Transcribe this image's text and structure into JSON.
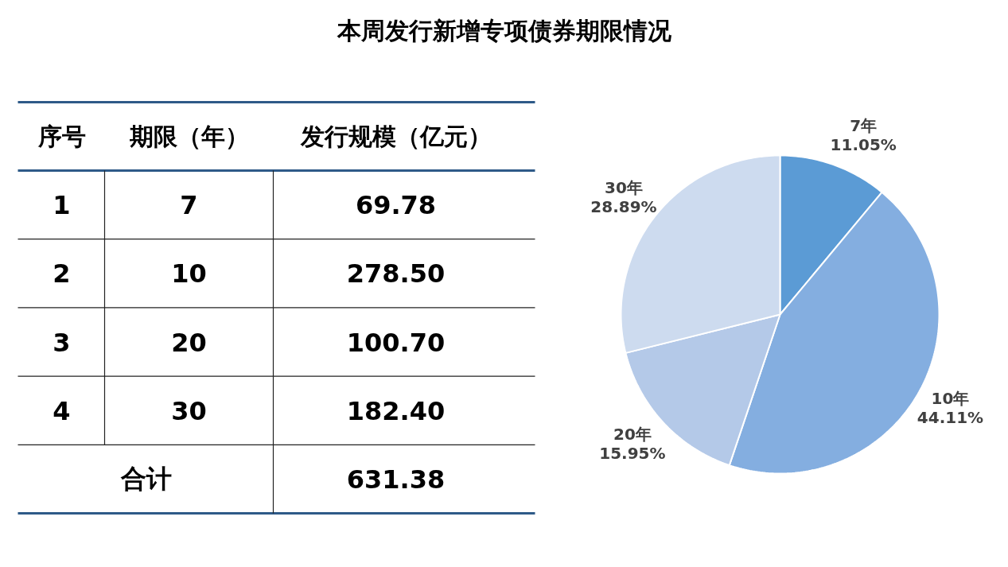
{
  "chart_data": {
    "type": "pie",
    "title": "本周发行新增专项债券期限情况",
    "categories": [
      "7年",
      "10年",
      "20年",
      "30年"
    ],
    "values": [
      11.05,
      44.11,
      15.95,
      28.89
    ],
    "value_labels": [
      "11.05%",
      "44.11%",
      "15.95%",
      "28.89%"
    ],
    "colors": [
      "#5b9bd5",
      "#84aee0",
      "#b4c9e8",
      "#cddbef"
    ],
    "annotations": [
      "序号",
      "期限（年）",
      "发行规模（亿元）",
      "1",
      "7",
      "69.78",
      "2",
      "10",
      "278.50",
      "3",
      "20",
      "100.70",
      "4",
      "30",
      "182.40",
      "合计"
    ],
    "totals": [
      "631.38"
    ]
  }
}
